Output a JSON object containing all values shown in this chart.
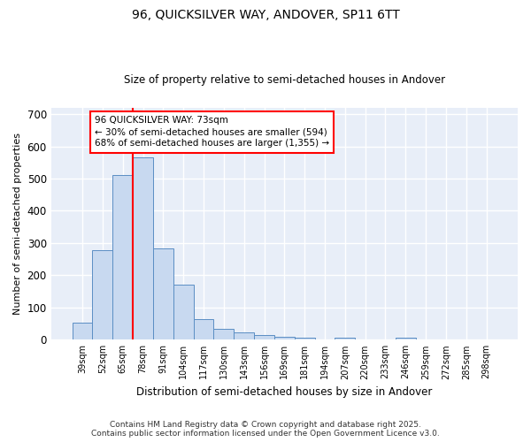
{
  "title1": "96, QUICKSILVER WAY, ANDOVER, SP11 6TT",
  "title2": "Size of property relative to semi-detached houses in Andover",
  "xlabel": "Distribution of semi-detached houses by size in Andover",
  "ylabel": "Number of semi-detached properties",
  "categories": [
    "39sqm",
    "52sqm",
    "65sqm",
    "78sqm",
    "91sqm",
    "104sqm",
    "117sqm",
    "130sqm",
    "143sqm",
    "156sqm",
    "169sqm",
    "181sqm",
    "194sqm",
    "207sqm",
    "220sqm",
    "233sqm",
    "246sqm",
    "259sqm",
    "272sqm",
    "285sqm",
    "298sqm"
  ],
  "values": [
    52,
    278,
    510,
    565,
    283,
    170,
    65,
    33,
    23,
    14,
    10,
    5,
    0,
    7,
    0,
    0,
    5,
    0,
    0,
    0,
    0
  ],
  "bar_color": "#c8d9f0",
  "bar_edge_color": "#5b8ec4",
  "vline_color": "red",
  "vline_x": 2.5,
  "annotation_line1": "96 QUICKSILVER WAY: 73sqm",
  "annotation_line2": "← 30% of semi-detached houses are smaller (594)",
  "annotation_line3": "68% of semi-detached houses are larger (1,355) →",
  "annotation_box_color": "white",
  "annotation_box_edge_color": "red",
  "ylim": [
    0,
    720
  ],
  "yticks": [
    0,
    100,
    200,
    300,
    400,
    500,
    600,
    700
  ],
  "plot_bg_color": "#e8eef8",
  "fig_bg_color": "#ffffff",
  "grid_color": "#ffffff",
  "footer": "Contains HM Land Registry data © Crown copyright and database right 2025.\nContains public sector information licensed under the Open Government Licence v3.0."
}
